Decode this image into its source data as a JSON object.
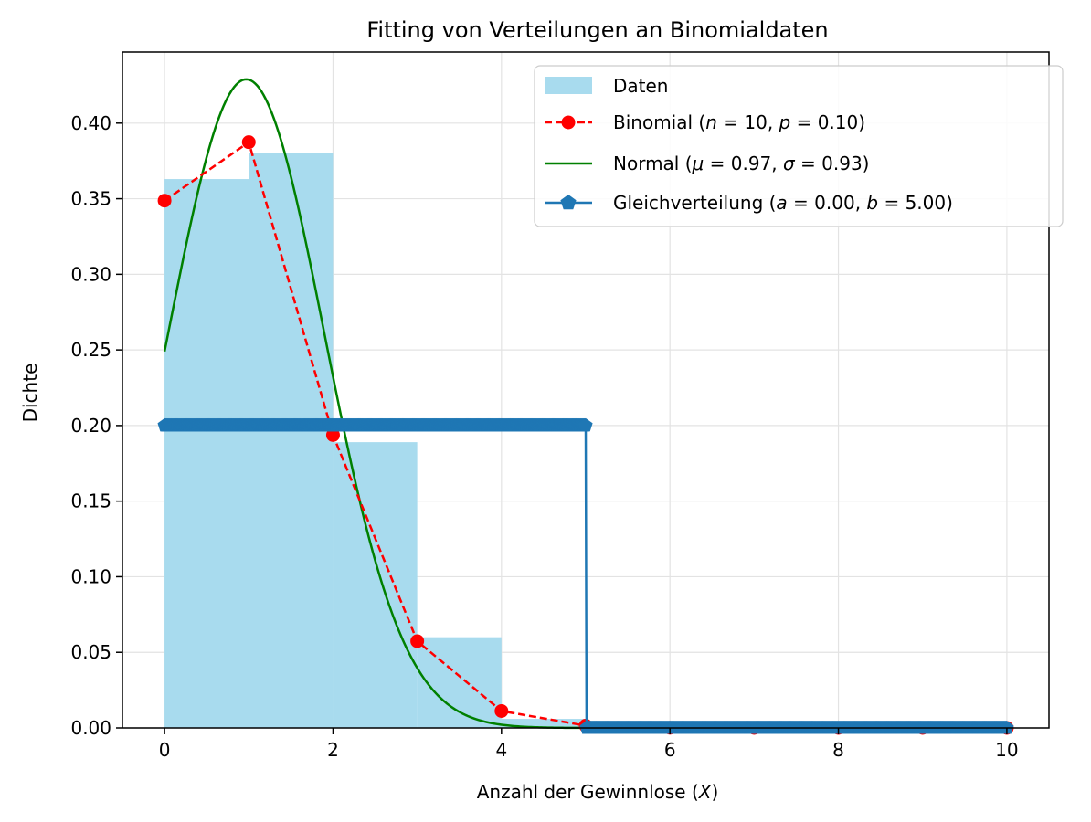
{
  "chart_data": {
    "type": "bar",
    "title": "Fitting von Verteilungen an Binomialdaten",
    "xlabel": "Anzahl der Gewinnlose (",
    "xlabel_var": "X",
    "xlabel_end": ")",
    "ylabel": "Dichte",
    "xlim": [
      -0.5,
      10.5
    ],
    "ylim": [
      0,
      0.447
    ],
    "xticks": [
      0,
      2,
      4,
      6,
      8,
      10
    ],
    "yticks": [
      0.0,
      0.05,
      0.1,
      0.15,
      0.2,
      0.25,
      0.3,
      0.35,
      0.4
    ],
    "grid": true,
    "legend_position": "top-right",
    "colors": {
      "histogram": "#a8dbee",
      "binomial": "#ff0000",
      "normal": "#008000",
      "uniform": "#1f77b4",
      "grid": "#e3e3e3"
    },
    "histogram": {
      "name": "Daten",
      "bins": [
        {
          "x0": 0,
          "x1": 1,
          "value": 0.363
        },
        {
          "x0": 1,
          "x1": 2,
          "value": 0.38
        },
        {
          "x0": 2,
          "x1": 3,
          "value": 0.189
        },
        {
          "x0": 3,
          "x1": 4,
          "value": 0.06
        },
        {
          "x0": 4,
          "x1": 5,
          "value": 0.006
        },
        {
          "x0": 5,
          "x1": 6,
          "value": 0.002
        },
        {
          "x0": 6,
          "x1": 7,
          "value": 0.0
        },
        {
          "x0": 7,
          "x1": 8,
          "value": 0.0
        },
        {
          "x0": 8,
          "x1": 9,
          "value": 0.0
        },
        {
          "x0": 9,
          "x1": 10,
          "value": 0.0
        }
      ]
    },
    "binomial": {
      "name_prefix": "Binomial (",
      "n_sym": "n",
      "n_val": " = 10, ",
      "p_sym": "p",
      "p_val": " = 0.10)",
      "n": 10,
      "p": 0.1,
      "x": [
        0,
        1,
        2,
        3,
        4,
        5,
        6,
        7,
        8,
        9,
        10
      ],
      "values": [
        0.3487,
        0.3874,
        0.1937,
        0.0574,
        0.0112,
        0.0015,
        0.0001,
        0.0,
        0.0,
        0.0,
        0.0
      ]
    },
    "normal": {
      "name_prefix": "Normal (",
      "mu_sym": "μ",
      "mu_val": " = 0.97, ",
      "sigma_sym": "σ",
      "sigma_val": " = 0.93)",
      "mu": 0.97,
      "sigma": 0.93,
      "x_range": [
        0,
        10
      ]
    },
    "uniform": {
      "name_prefix": "Gleichverteilung (",
      "a_sym": "a",
      "a_val": " = 0.00, ",
      "b_sym": "b",
      "b_val": " = 5.00)",
      "a": 0.0,
      "b": 5.0,
      "x_range": [
        0,
        10
      ]
    }
  }
}
